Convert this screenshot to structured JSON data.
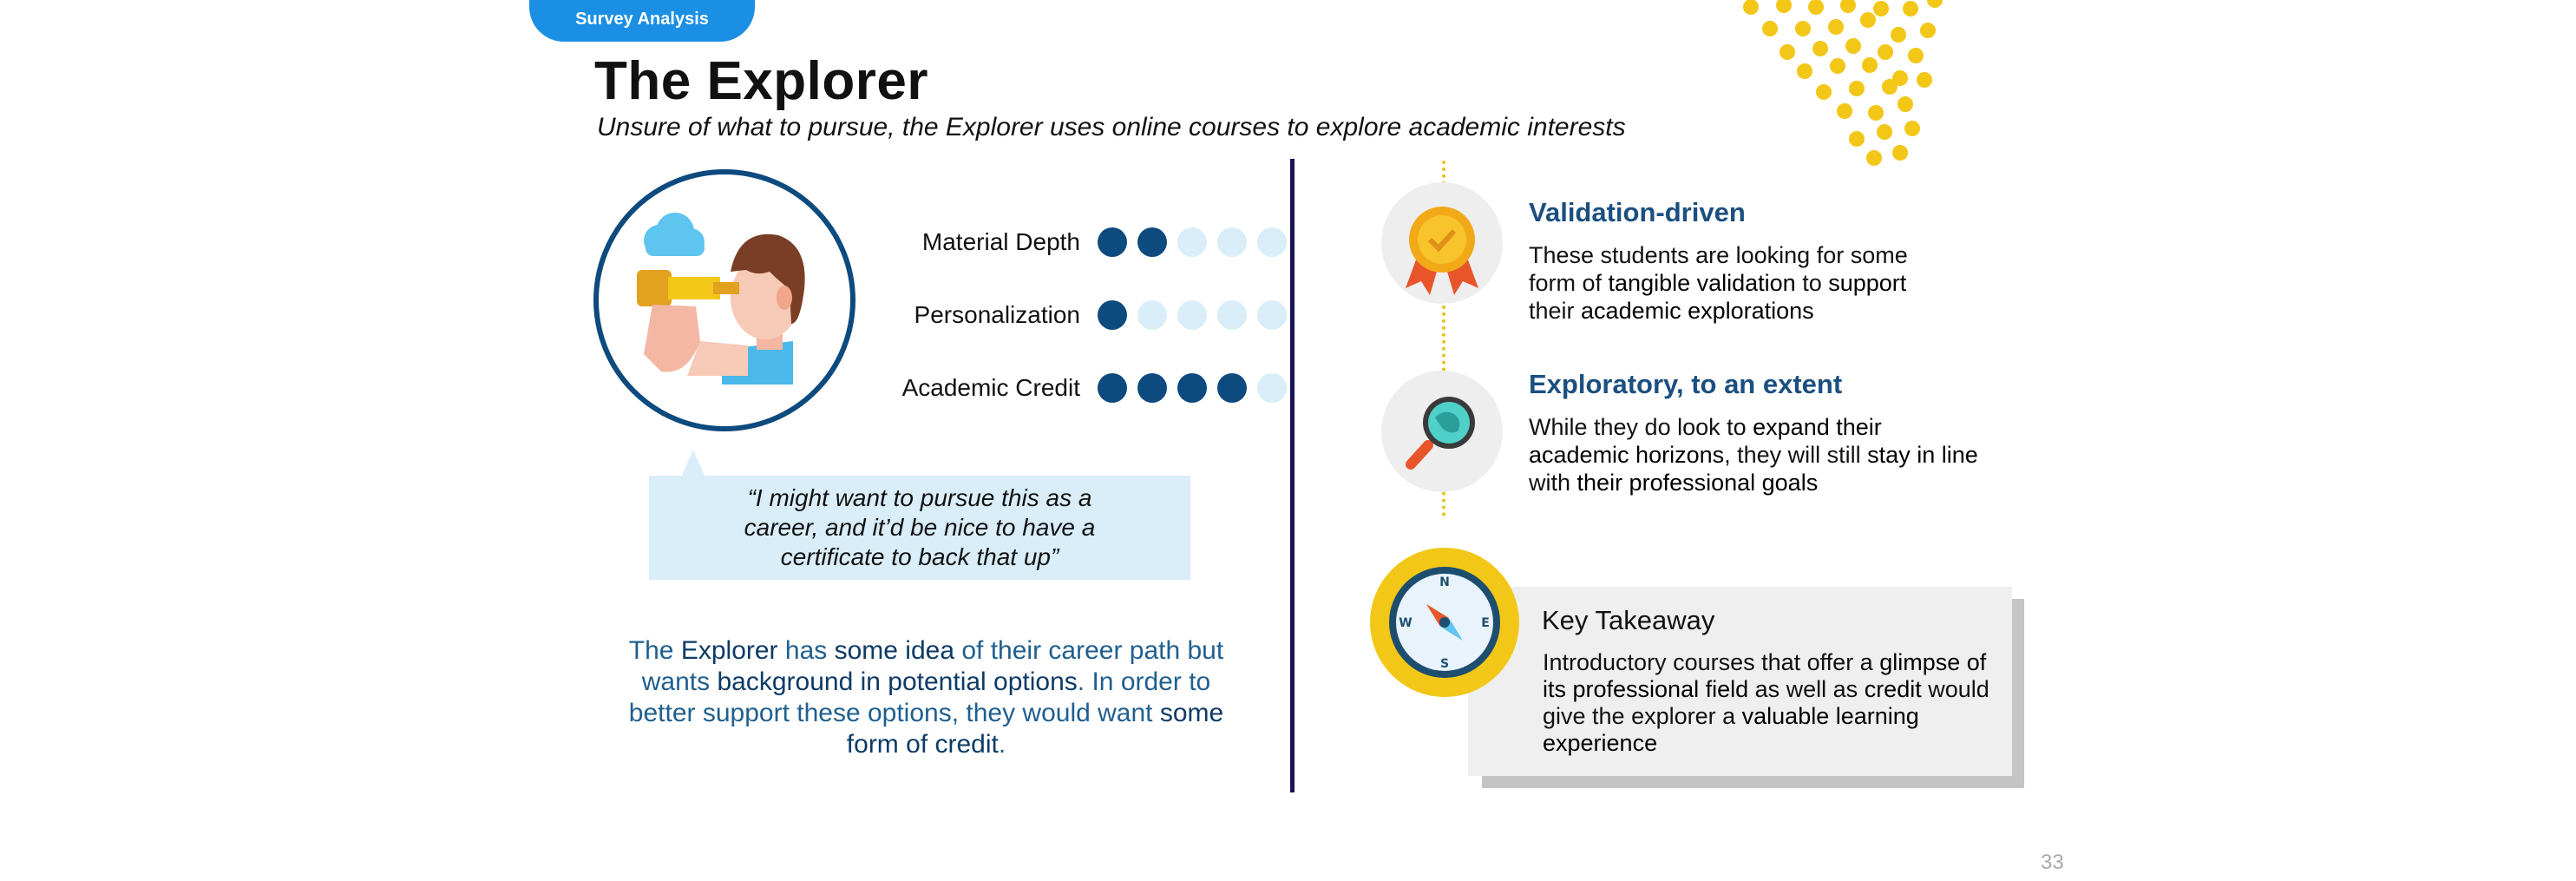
{
  "header": {
    "tag": "Survey Analysis",
    "title": "The Explorer",
    "subtitle": "Unsure of what to pursue, the Explorer uses online courses to explore academic interests"
  },
  "ratings": [
    {
      "label": "Material Depth",
      "filled": 2,
      "total": 5
    },
    {
      "label": "Personalization",
      "filled": 1,
      "total": 5
    },
    {
      "label": "Academic Credit",
      "filled": 4,
      "total": 5
    }
  ],
  "quote": "“I might want to pursue this as a career, and it’d be nice to have a certificate to back that up”",
  "summary": {
    "p1": "The ",
    "b1": "Explorer",
    "p2": " has ",
    "b2": "some idea",
    "p3": " of their career path but wants ",
    "b3": "background in potential options",
    "p4": ". In order to better support these options, they would want ",
    "b4": "some form of credit",
    "p5": "."
  },
  "features": [
    {
      "title": "Validation-driven",
      "t1": "These students are looking for some form of ",
      "b1": "tangible validation",
      "t2": " to ",
      "b2": "support",
      "t3": " their ",
      "b3": "academic explorations",
      "t4": ""
    },
    {
      "title": "Exploratory, to an extent",
      "t1": "While they do look to ",
      "b1": "expand their academic horizons",
      "t2": ", they will still ",
      "b2": "stay in line",
      "t3": " with ",
      "b3": "their professional goals",
      "t4": ""
    }
  ],
  "takeaway": {
    "title": "Key Takeaway",
    "t1": "Introductory courses that offer a ",
    "b1": "glimpse of its professional field",
    "t2": " as well as ",
    "b2": "credit",
    "t3": " would give the explorer a ",
    "b3": "valuable learning experience",
    "t4": ""
  },
  "compass_letters": {
    "n": "N",
    "s": "S",
    "e": "E",
    "w": "W"
  },
  "page_number": "33",
  "colors": {
    "accent_blue": "#1a8fe3",
    "navy": "#0d4a7e",
    "light_blue": "#d9eef9",
    "gold": "#f2c718",
    "divider": "#1a1458"
  }
}
